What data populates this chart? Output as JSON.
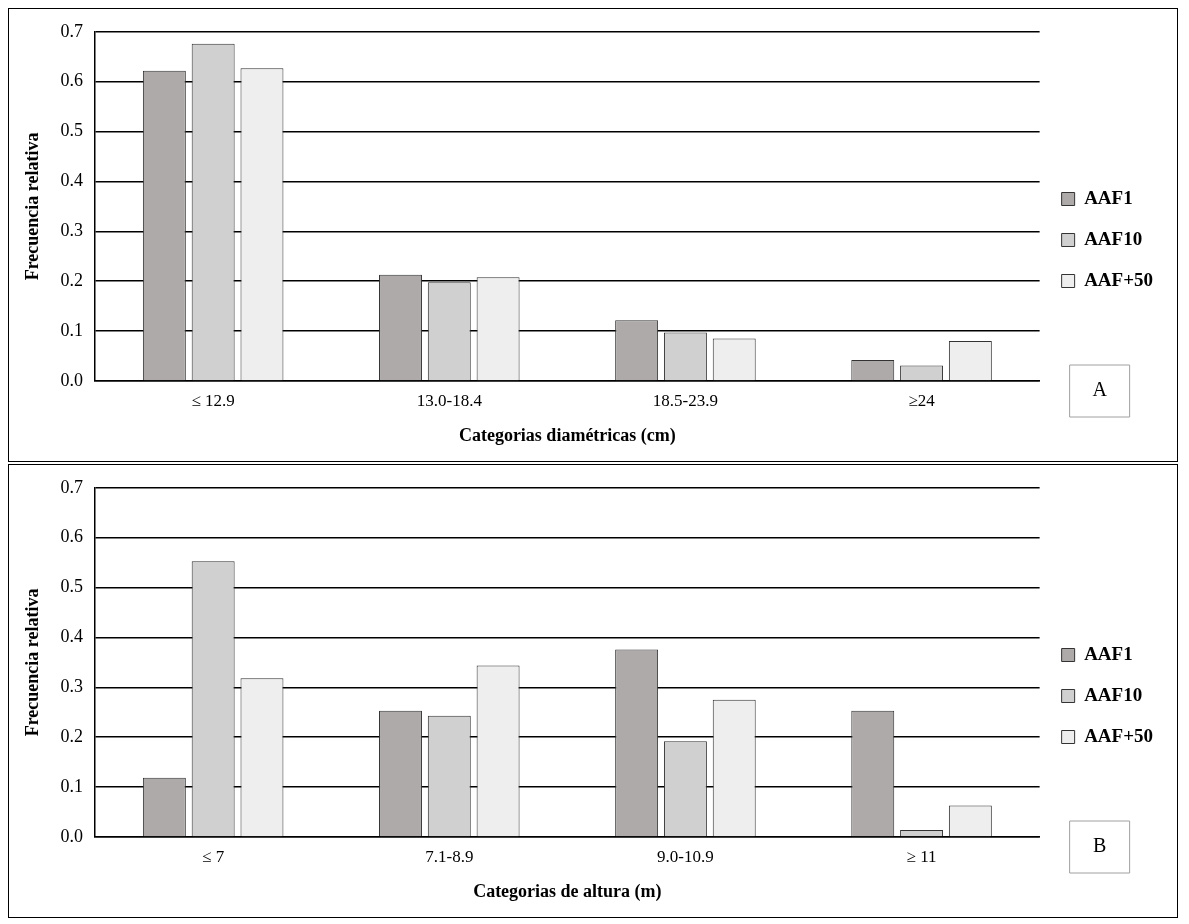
{
  "chart_data": [
    {
      "type": "bar",
      "xlabel": "Categorias diamétricas (cm)",
      "ylabel": "Frecuencia relativa",
      "categories": [
        "≤ 12.9",
        "13.0-18.4",
        "18.5-23.9",
        "≥24"
      ],
      "series": [
        {
          "name": "AAF1",
          "color": "#aeaaaa",
          "values": [
            0.622,
            0.213,
            0.122,
            0.042
          ]
        },
        {
          "name": "AAF10",
          "color": "#d0d0d0",
          "values": [
            0.676,
            0.198,
            0.097,
            0.031
          ]
        },
        {
          "name": "AAF+50",
          "color": "#eeeeee",
          "values": [
            0.627,
            0.208,
            0.085,
            0.08
          ]
        }
      ],
      "ylim": [
        0,
        0.7
      ],
      "yticks": [
        {
          "value": 0,
          "label": "0.0"
        },
        0.1,
        0.2,
        0.3,
        0.4,
        0.5,
        0.6,
        0.7
      ],
      "grid": "y",
      "legend": "right",
      "annotations": [
        "A"
      ]
    },
    {
      "type": "bar",
      "xlabel": "Categorias de altura (m)",
      "ylabel": "Frecuencia relativa",
      "categories": [
        "≤ 7",
        "7.1-8.9",
        "9.0-10.9",
        "≥ 11"
      ],
      "series": [
        {
          "name": "AAF1",
          "color": "#aeaaaa",
          "values": [
            0.119,
            0.253,
            0.376,
            0.253
          ]
        },
        {
          "name": "AAF10",
          "color": "#d0d0d0",
          "values": [
            0.553,
            0.243,
            0.192,
            0.014
          ]
        },
        {
          "name": "AAF+50",
          "color": "#eeeeee",
          "values": [
            0.318,
            0.344,
            0.275,
            0.063
          ]
        }
      ],
      "ylim": [
        0,
        0.7
      ],
      "yticks": [
        {
          "value": 0,
          "label": "0.0"
        },
        0.1,
        0.2,
        0.3,
        0.4,
        0.5,
        0.6,
        0.7
      ],
      "grid": "y",
      "legend": "right",
      "annotations": [
        "B"
      ]
    }
  ]
}
